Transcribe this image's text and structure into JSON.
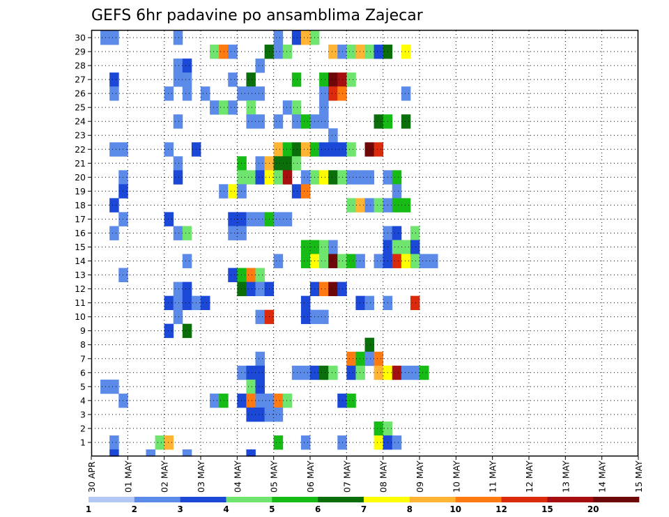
{
  "chart_data": {
    "type": "heatmap",
    "title": "GEFS 6hr padavine po ansamblima Zajecar",
    "xlabel": "",
    "ylabel": "",
    "x_tick_labels": [
      "30 APR",
      "01 MAY",
      "02 MAY",
      "03 MAY",
      "04 MAY",
      "05 MAY",
      "06 MAY",
      "07 MAY",
      "08 MAY",
      "09 MAY",
      "10 MAY",
      "11 MAY",
      "12 MAY",
      "13 MAY",
      "14 MAY",
      "15 MAY"
    ],
    "y_tick_labels": [
      "1",
      "2",
      "3",
      "4",
      "5",
      "6",
      "7",
      "8",
      "9",
      "10",
      "11",
      "12",
      "13",
      "14",
      "15",
      "16",
      "17",
      "18",
      "19",
      "20",
      "21",
      "22",
      "23",
      "24",
      "25",
      "26",
      "27",
      "28",
      "29",
      "30"
    ],
    "x_range_days": [
      0,
      15
    ],
    "y_range": [
      0,
      30
    ],
    "time_step_hours": 6,
    "grid": "dotted",
    "colorbar": {
      "labels": [
        "1",
        "2",
        "3",
        "4",
        "5",
        "6",
        "7",
        "8",
        "10",
        "12",
        "15",
        "20"
      ],
      "colors": [
        "#b3c8f5",
        "#5b8ae8",
        "#1c48d8",
        "#6fe46f",
        "#16bb16",
        "#0a6e0a",
        "#ffff00",
        "#ffb433",
        "#ff7a10",
        "#dc2a0c",
        "#a50f0f",
        "#6e0808"
      ]
    },
    "cells": [
      [
        1,
        30,
        1
      ],
      [
        2,
        30,
        1
      ],
      [
        9,
        30,
        1
      ],
      [
        20,
        30,
        1
      ],
      [
        22,
        30,
        2
      ],
      [
        23,
        30,
        7
      ],
      [
        24,
        30,
        3
      ],
      [
        13,
        29,
        3
      ],
      [
        14,
        29,
        8
      ],
      [
        15,
        29,
        1
      ],
      [
        19,
        29,
        5
      ],
      [
        20,
        29,
        1
      ],
      [
        21,
        29,
        3
      ],
      [
        26,
        29,
        7
      ],
      [
        27,
        29,
        1
      ],
      [
        28,
        29,
        3
      ],
      [
        29,
        29,
        7
      ],
      [
        30,
        29,
        3
      ],
      [
        31,
        29,
        2
      ],
      [
        32,
        29,
        5
      ],
      [
        34,
        29,
        6
      ],
      [
        9,
        28,
        1
      ],
      [
        10,
        28,
        2
      ],
      [
        18,
        28,
        1
      ],
      [
        2,
        27,
        2
      ],
      [
        9,
        27,
        1
      ],
      [
        10,
        27,
        1
      ],
      [
        15,
        27,
        1
      ],
      [
        17,
        27,
        5
      ],
      [
        22,
        27,
        4
      ],
      [
        25,
        27,
        4
      ],
      [
        26,
        27,
        11
      ],
      [
        27,
        27,
        10
      ],
      [
        28,
        27,
        3
      ],
      [
        2,
        26,
        1
      ],
      [
        8,
        26,
        1
      ],
      [
        10,
        26,
        1
      ],
      [
        12,
        26,
        1
      ],
      [
        16,
        26,
        1
      ],
      [
        17,
        26,
        1
      ],
      [
        18,
        26,
        1
      ],
      [
        25,
        26,
        1
      ],
      [
        26,
        26,
        9
      ],
      [
        27,
        26,
        8
      ],
      [
        34,
        26,
        1
      ],
      [
        13,
        25,
        1
      ],
      [
        14,
        25,
        3
      ],
      [
        15,
        25,
        1
      ],
      [
        17,
        25,
        3
      ],
      [
        21,
        25,
        1
      ],
      [
        22,
        25,
        3
      ],
      [
        25,
        25,
        1
      ],
      [
        9,
        24,
        1
      ],
      [
        17,
        24,
        1
      ],
      [
        18,
        24,
        1
      ],
      [
        20,
        24,
        1
      ],
      [
        22,
        24,
        1
      ],
      [
        23,
        24,
        4
      ],
      [
        24,
        24,
        1
      ],
      [
        25,
        24,
        1
      ],
      [
        31,
        24,
        5
      ],
      [
        32,
        24,
        4
      ],
      [
        34,
        24,
        5
      ],
      [
        26,
        23,
        1
      ],
      [
        2,
        22,
        1
      ],
      [
        3,
        22,
        1
      ],
      [
        8,
        22,
        1
      ],
      [
        11,
        22,
        2
      ],
      [
        20,
        22,
        7
      ],
      [
        21,
        22,
        4
      ],
      [
        22,
        22,
        5
      ],
      [
        23,
        22,
        7
      ],
      [
        24,
        22,
        4
      ],
      [
        25,
        22,
        2
      ],
      [
        26,
        22,
        2
      ],
      [
        27,
        22,
        2
      ],
      [
        28,
        22,
        3
      ],
      [
        30,
        22,
        11
      ],
      [
        31,
        22,
        9
      ],
      [
        9,
        21,
        1
      ],
      [
        16,
        21,
        4
      ],
      [
        18,
        21,
        1
      ],
      [
        19,
        21,
        7
      ],
      [
        20,
        21,
        5
      ],
      [
        21,
        21,
        5
      ],
      [
        22,
        21,
        3
      ],
      [
        3,
        20,
        1
      ],
      [
        9,
        20,
        2
      ],
      [
        16,
        20,
        3
      ],
      [
        17,
        20,
        3
      ],
      [
        18,
        20,
        2
      ],
      [
        19,
        20,
        6
      ],
      [
        20,
        20,
        3
      ],
      [
        21,
        20,
        10
      ],
      [
        23,
        20,
        1
      ],
      [
        24,
        20,
        3
      ],
      [
        25,
        20,
        6
      ],
      [
        26,
        20,
        5
      ],
      [
        27,
        20,
        3
      ],
      [
        28,
        20,
        1
      ],
      [
        29,
        20,
        1
      ],
      [
        30,
        20,
        1
      ],
      [
        32,
        20,
        1
      ],
      [
        33,
        20,
        4
      ],
      [
        3,
        19,
        2
      ],
      [
        14,
        19,
        1
      ],
      [
        15,
        19,
        6
      ],
      [
        16,
        19,
        1
      ],
      [
        22,
        19,
        2
      ],
      [
        23,
        19,
        8
      ],
      [
        33,
        19,
        1
      ],
      [
        2,
        18,
        2
      ],
      [
        28,
        18,
        3
      ],
      [
        29,
        18,
        7
      ],
      [
        30,
        18,
        1
      ],
      [
        31,
        18,
        3
      ],
      [
        32,
        18,
        1
      ],
      [
        33,
        18,
        4
      ],
      [
        34,
        18,
        4
      ],
      [
        3,
        17,
        1
      ],
      [
        8,
        17,
        2
      ],
      [
        15,
        17,
        2
      ],
      [
        16,
        17,
        2
      ],
      [
        17,
        17,
        1
      ],
      [
        18,
        17,
        1
      ],
      [
        19,
        17,
        4
      ],
      [
        20,
        17,
        1
      ],
      [
        21,
        17,
        1
      ],
      [
        2,
        16,
        1
      ],
      [
        9,
        16,
        1
      ],
      [
        10,
        16,
        3
      ],
      [
        15,
        16,
        1
      ],
      [
        16,
        16,
        1
      ],
      [
        32,
        16,
        1
      ],
      [
        33,
        16,
        2
      ],
      [
        35,
        16,
        3
      ],
      [
        23,
        15,
        4
      ],
      [
        24,
        15,
        4
      ],
      [
        25,
        15,
        3
      ],
      [
        26,
        15,
        1
      ],
      [
        32,
        15,
        2
      ],
      [
        33,
        15,
        3
      ],
      [
        34,
        15,
        3
      ],
      [
        35,
        15,
        2
      ],
      [
        10,
        14,
        1
      ],
      [
        20,
        14,
        1
      ],
      [
        23,
        14,
        4
      ],
      [
        24,
        14,
        6
      ],
      [
        25,
        14,
        3
      ],
      [
        26,
        14,
        11
      ],
      [
        27,
        14,
        3
      ],
      [
        28,
        14,
        4
      ],
      [
        29,
        14,
        1
      ],
      [
        31,
        14,
        1
      ],
      [
        32,
        14,
        2
      ],
      [
        33,
        14,
        9
      ],
      [
        34,
        14,
        6
      ],
      [
        35,
        14,
        3
      ],
      [
        36,
        14,
        1
      ],
      [
        37,
        14,
        1
      ],
      [
        3,
        13,
        1
      ],
      [
        15,
        13,
        2
      ],
      [
        16,
        13,
        4
      ],
      [
        17,
        13,
        8
      ],
      [
        18,
        13,
        3
      ],
      [
        9,
        12,
        1
      ],
      [
        10,
        12,
        2
      ],
      [
        16,
        12,
        5
      ],
      [
        17,
        12,
        2
      ],
      [
        18,
        12,
        1
      ],
      [
        19,
        12,
        2
      ],
      [
        24,
        12,
        2
      ],
      [
        25,
        12,
        8
      ],
      [
        26,
        12,
        11
      ],
      [
        27,
        12,
        2
      ],
      [
        8,
        11,
        2
      ],
      [
        9,
        11,
        1
      ],
      [
        10,
        11,
        2
      ],
      [
        11,
        11,
        1
      ],
      [
        12,
        11,
        2
      ],
      [
        23,
        11,
        2
      ],
      [
        29,
        11,
        2
      ],
      [
        30,
        11,
        1
      ],
      [
        32,
        11,
        1
      ],
      [
        35,
        11,
        9
      ],
      [
        9,
        10,
        1
      ],
      [
        18,
        10,
        1
      ],
      [
        19,
        10,
        9
      ],
      [
        23,
        10,
        2
      ],
      [
        24,
        10,
        1
      ],
      [
        25,
        10,
        1
      ],
      [
        8,
        9,
        2
      ],
      [
        10,
        9,
        5
      ],
      [
        30,
        8,
        5
      ],
      [
        18,
        7,
        1
      ],
      [
        28,
        7,
        8
      ],
      [
        29,
        7,
        4
      ],
      [
        30,
        7,
        1
      ],
      [
        31,
        7,
        8
      ],
      [
        16,
        6,
        1
      ],
      [
        17,
        6,
        2
      ],
      [
        18,
        6,
        2
      ],
      [
        22,
        6,
        1
      ],
      [
        23,
        6,
        1
      ],
      [
        24,
        6,
        2
      ],
      [
        25,
        6,
        5
      ],
      [
        26,
        6,
        3
      ],
      [
        28,
        6,
        2
      ],
      [
        29,
        6,
        3
      ],
      [
        31,
        6,
        7
      ],
      [
        32,
        6,
        6
      ],
      [
        33,
        6,
        10
      ],
      [
        34,
        6,
        1
      ],
      [
        35,
        6,
        1
      ],
      [
        36,
        6,
        4
      ],
      [
        1,
        5,
        1
      ],
      [
        2,
        5,
        1
      ],
      [
        17,
        5,
        3
      ],
      [
        18,
        5,
        2
      ],
      [
        3,
        4,
        1
      ],
      [
        13,
        4,
        1
      ],
      [
        14,
        4,
        4
      ],
      [
        16,
        4,
        2
      ],
      [
        17,
        4,
        8
      ],
      [
        18,
        4,
        1
      ],
      [
        19,
        4,
        1
      ],
      [
        20,
        4,
        8
      ],
      [
        21,
        4,
        3
      ],
      [
        27,
        4,
        2
      ],
      [
        28,
        4,
        4
      ],
      [
        17,
        3,
        2
      ],
      [
        18,
        3,
        2
      ],
      [
        19,
        3,
        1
      ],
      [
        20,
        3,
        1
      ],
      [
        31,
        2,
        4
      ],
      [
        32,
        2,
        3
      ],
      [
        2,
        1,
        1
      ],
      [
        7,
        1,
        3
      ],
      [
        8,
        1,
        7
      ],
      [
        20,
        1,
        4
      ],
      [
        23,
        1,
        1
      ],
      [
        27,
        1,
        1
      ],
      [
        31,
        1,
        6
      ],
      [
        32,
        1,
        2
      ],
      [
        33,
        1,
        1
      ],
      [
        2,
        0,
        2
      ],
      [
        6,
        0,
        1
      ],
      [
        10,
        0,
        1
      ],
      [
        17,
        0,
        2
      ]
    ]
  }
}
